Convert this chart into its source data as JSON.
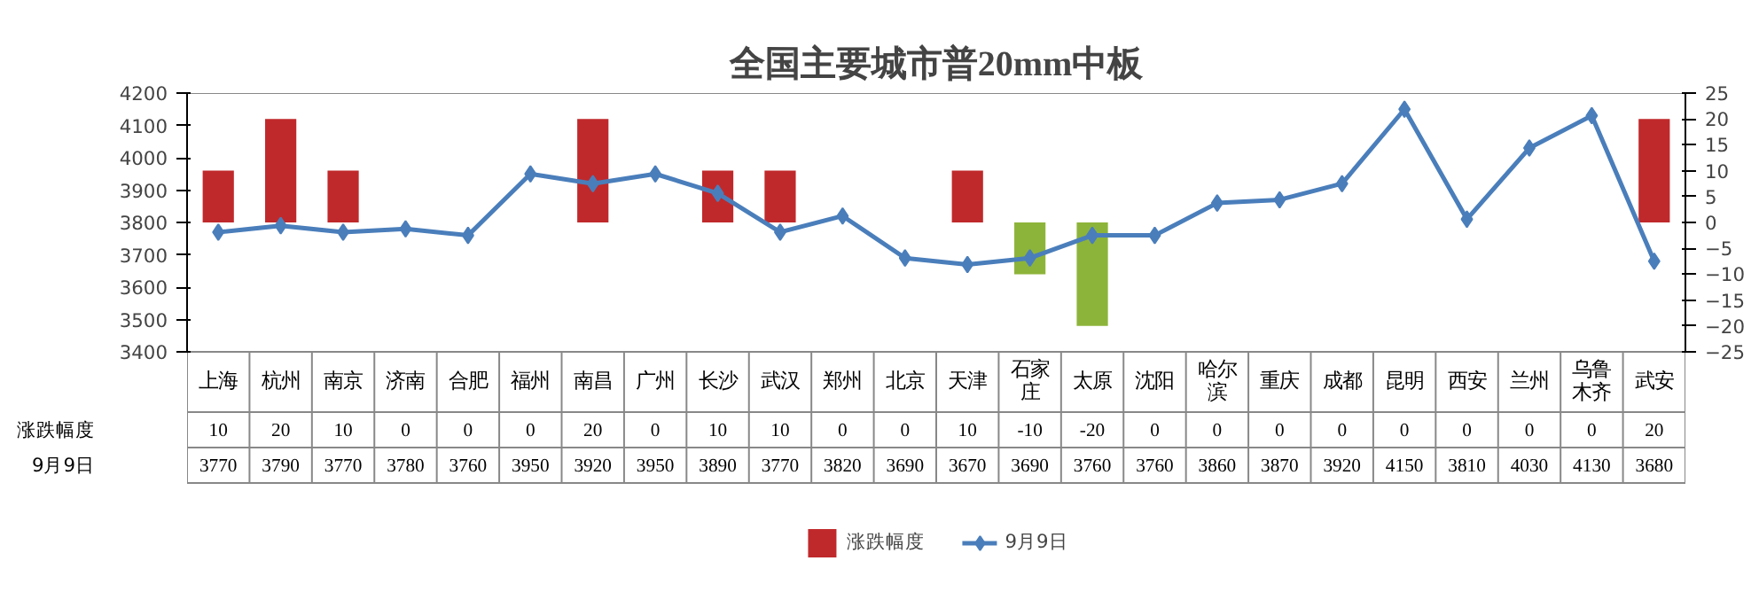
{
  "chart_data": {
    "type": "bar",
    "title": "全国主要城市普20mm中板",
    "categories": [
      "上海",
      "杭州",
      "南京",
      "济南",
      "合肥",
      "福州",
      "南昌",
      "广州",
      "长沙",
      "武汉",
      "郑州",
      "北京",
      "天津",
      "石家庄",
      "太原",
      "沈阳",
      "哈尔滨",
      "重庆",
      "成都",
      "昆明",
      "西安",
      "兰州",
      "乌鲁木齐",
      "武安"
    ],
    "series": [
      {
        "name": "涨跌幅度",
        "axis": "y2",
        "colors": [
          "#c0292b",
          "#c0292b",
          "#c0292b",
          "#c0292b",
          "#c0292b",
          "#c0292b",
          "#c0292b",
          "#c0292b",
          "#c0292b",
          "#c0292b",
          "#c0292b",
          "#c0292b",
          "#c0292b",
          "#8db43a",
          "#8db43a",
          "#c0292b",
          "#c0292b",
          "#c0292b",
          "#c0292b",
          "#c0292b",
          "#c0292b",
          "#c0292b",
          "#c0292b",
          "#c0292b"
        ],
        "values": [
          10,
          20,
          10,
          0,
          0,
          0,
          20,
          0,
          10,
          10,
          0,
          0,
          10,
          -10,
          -20,
          0,
          0,
          0,
          0,
          0,
          0,
          0,
          0,
          20
        ]
      },
      {
        "name": "9月9日",
        "type": "line",
        "color": "#4a7ebb",
        "marker": "diamond",
        "values": [
          3770,
          3790,
          3770,
          3780,
          3760,
          3950,
          3920,
          3950,
          3890,
          3770,
          3820,
          3690,
          3670,
          3690,
          3760,
          3760,
          3860,
          3870,
          3920,
          4150,
          3810,
          4030,
          4130,
          3680
        ]
      }
    ],
    "ylim": [
      3400,
      4200
    ],
    "yticks": [
      3400,
      3500,
      3600,
      3700,
      3800,
      3900,
      4000,
      4100,
      4200
    ],
    "y2lim": [
      -25,
      25
    ],
    "y2ticks": [
      -25,
      -20,
      -15,
      -10,
      -5,
      0,
      5,
      10,
      15,
      20,
      25
    ],
    "data_labels": true,
    "legend": "bottom",
    "grid": false
  }
}
